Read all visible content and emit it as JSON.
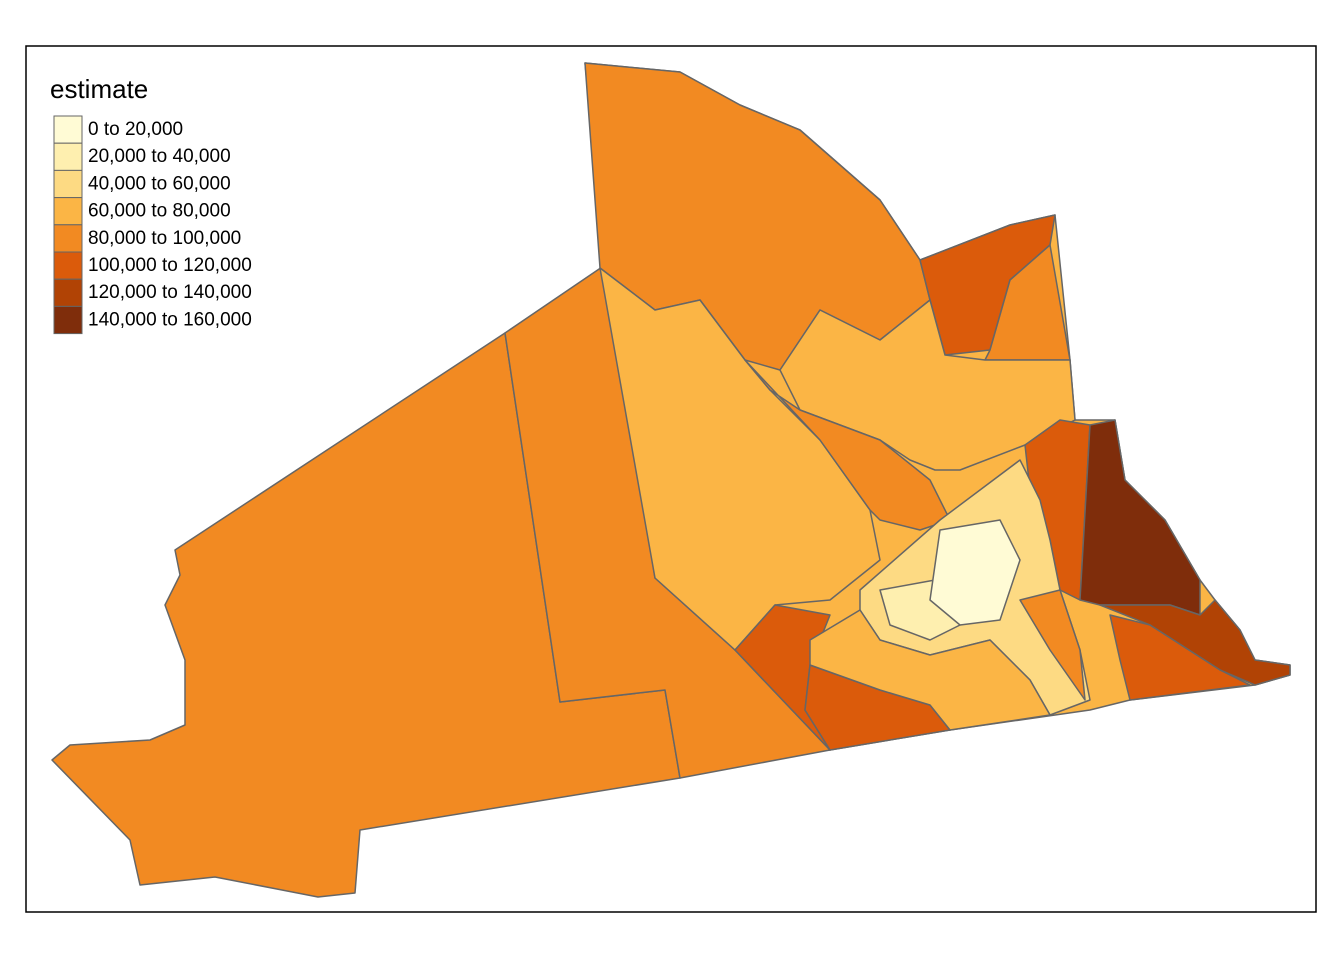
{
  "legend": {
    "title": "estimate",
    "items": [
      {
        "label": "0 to 20,000",
        "color": "#fffbd5"
      },
      {
        "label": "20,000 to 40,000",
        "color": "#feefaf"
      },
      {
        "label": "40,000 to 60,000",
        "color": "#fdda83"
      },
      {
        "label": "60,000 to 80,000",
        "color": "#fbb545"
      },
      {
        "label": "80,000 to 100,000",
        "color": "#f28a22"
      },
      {
        "label": "100,000 to 120,000",
        "color": "#db5b0b"
      },
      {
        "label": "120,000 to 140,000",
        "color": "#b14305"
      },
      {
        "label": "140,000 to 160,000",
        "color": "#7f2d0b"
      }
    ]
  }
}
